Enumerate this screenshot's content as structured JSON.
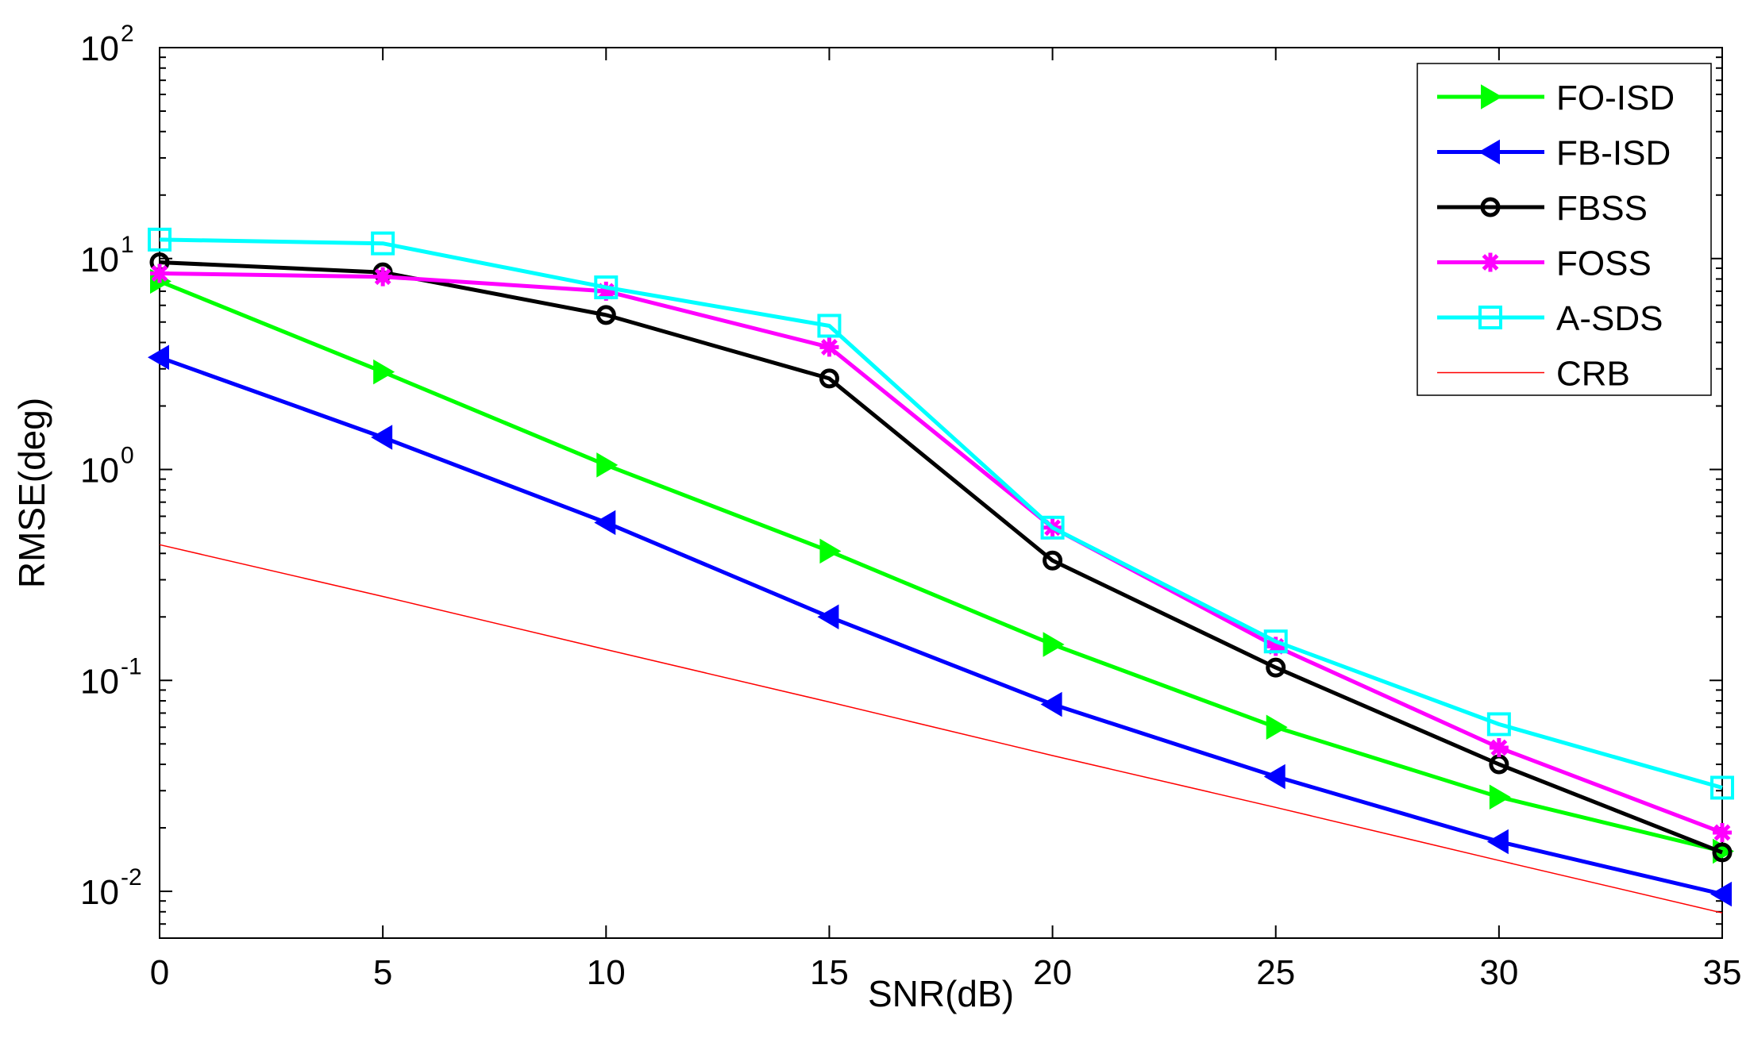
{
  "chart_data": {
    "type": "line",
    "title": "",
    "xlabel": "SNR(dB)",
    "ylabel": "RMSE(deg)",
    "xscale": "linear",
    "yscale": "log",
    "xlim": [
      0,
      35
    ],
    "ylim": [
      0.006,
      100
    ],
    "grid": false,
    "legend_position": "top-right",
    "x_ticks": [
      0,
      5,
      10,
      15,
      20,
      25,
      30,
      35
    ],
    "x_tick_labels": [
      "0",
      "5",
      "10",
      "15",
      "20",
      "25",
      "30",
      "35"
    ],
    "y_ticks": [
      0.01,
      0.1,
      1,
      10,
      100
    ],
    "y_tick_labels": [
      {
        "base": "10",
        "exp": "-2"
      },
      {
        "base": "10",
        "exp": "-1"
      },
      {
        "base": "10",
        "exp": "0"
      },
      {
        "base": "10",
        "exp": "1"
      },
      {
        "base": "10",
        "exp": "2"
      }
    ],
    "x": [
      0,
      5,
      10,
      15,
      20,
      25,
      30,
      35
    ],
    "series": [
      {
        "name": "FO-ISD",
        "color": "#00ff00",
        "marker": "triangle-right",
        "values": [
          7.8,
          2.9,
          1.05,
          0.41,
          0.148,
          0.06,
          0.028,
          0.0155
        ]
      },
      {
        "name": "FB-ISD",
        "color": "#0000ff",
        "marker": "triangle-left",
        "values": [
          3.4,
          1.42,
          0.56,
          0.2,
          0.077,
          0.035,
          0.0172,
          0.0097
        ]
      },
      {
        "name": "FBSS",
        "color": "#000000",
        "marker": "circle",
        "values": [
          9.6,
          8.6,
          5.4,
          2.7,
          0.37,
          0.115,
          0.04,
          0.0153
        ]
      },
      {
        "name": "FOSS",
        "color": "#ff00ff",
        "marker": "asterisk",
        "values": [
          8.5,
          8.2,
          7.0,
          3.8,
          0.53,
          0.145,
          0.048,
          0.019
        ]
      },
      {
        "name": "A-SDS",
        "color": "#00ffff",
        "marker": "square",
        "values": [
          12.3,
          11.8,
          7.3,
          4.8,
          0.53,
          0.153,
          0.062,
          0.031
        ]
      },
      {
        "name": "CRB",
        "color": "#ff0000",
        "marker": "none",
        "line_style": "thin",
        "values": [
          0.44,
          0.25,
          0.14,
          0.079,
          0.044,
          0.025,
          0.014,
          0.0079
        ]
      }
    ]
  }
}
